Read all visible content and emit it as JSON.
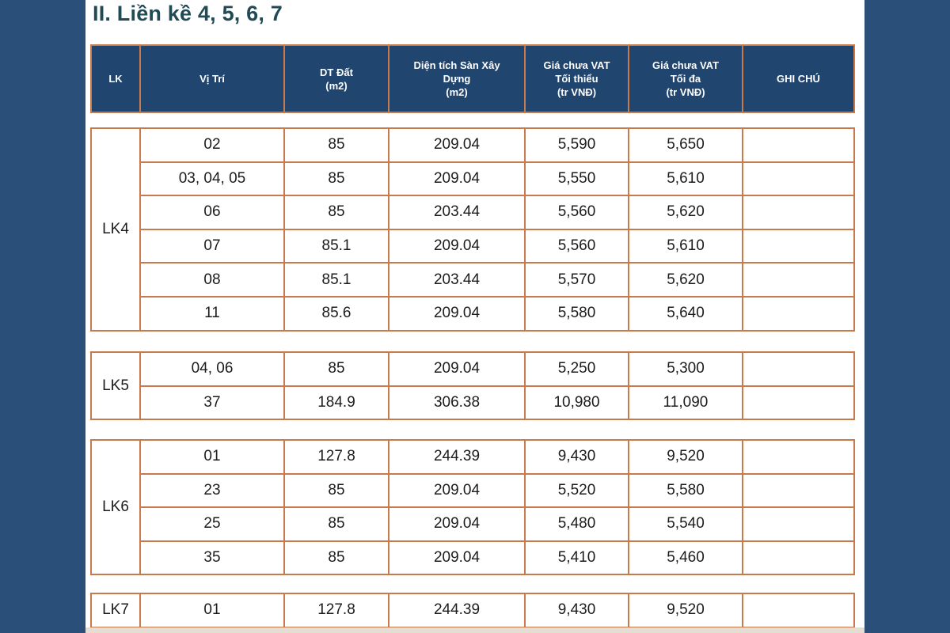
{
  "title": "II. Liền kề 4, 5, 6, 7",
  "header": [
    "LK",
    "Vị Trí",
    "DT Đất\n(m2)",
    "Diện tích Sàn Xây\nDựng\n(m2)",
    "Giá chưa VAT\nTối thiểu\n(tr VNĐ)",
    "Giá chưa VAT\nTối đa\n(tr VNĐ)",
    "GHI CHÚ"
  ],
  "groups": [
    {
      "lk": "LK4",
      "rows": [
        {
          "vitri": "02",
          "dt": "85",
          "san": "209.04",
          "min": "5,590",
          "max": "5,650",
          "note": ""
        },
        {
          "vitri": "03, 04, 05",
          "dt": "85",
          "san": "209.04",
          "min": "5,550",
          "max": "5,610",
          "note": ""
        },
        {
          "vitri": "06",
          "dt": "85",
          "san": "203.44",
          "min": "5,560",
          "max": "5,620",
          "note": ""
        },
        {
          "vitri": "07",
          "dt": "85.1",
          "san": "209.04",
          "min": "5,560",
          "max": "5,610",
          "note": ""
        },
        {
          "vitri": "08",
          "dt": "85.1",
          "san": "203.44",
          "min": "5,570",
          "max": "5,620",
          "note": ""
        },
        {
          "vitri": "11",
          "dt": "85.6",
          "san": "209.04",
          "min": "5,580",
          "max": "5,640",
          "note": ""
        }
      ]
    },
    {
      "lk": "LK5",
      "rows": [
        {
          "vitri": "04, 06",
          "dt": "85",
          "san": "209.04",
          "min": "5,250",
          "max": "5,300",
          "note": ""
        },
        {
          "vitri": "37",
          "dt": "184.9",
          "san": "306.38",
          "min": "10,980",
          "max": "11,090",
          "note": ""
        }
      ]
    },
    {
      "lk": "LK6",
      "rows": [
        {
          "vitri": "01",
          "dt": "127.8",
          "san": "244.39",
          "min": "9,430",
          "max": "9,520",
          "note": ""
        },
        {
          "vitri": "23",
          "dt": "85",
          "san": "209.04",
          "min": "5,520",
          "max": "5,580",
          "note": ""
        },
        {
          "vitri": "25",
          "dt": "85",
          "san": "209.04",
          "min": "5,480",
          "max": "5,540",
          "note": ""
        },
        {
          "vitri": "35",
          "dt": "85",
          "san": "209.04",
          "min": "5,410",
          "max": "5,460",
          "note": ""
        }
      ]
    },
    {
      "lk": "LK7",
      "rows": [
        {
          "vitri": "01",
          "dt": "127.8",
          "san": "244.39",
          "min": "9,430",
          "max": "9,520",
          "note": ""
        }
      ]
    }
  ]
}
